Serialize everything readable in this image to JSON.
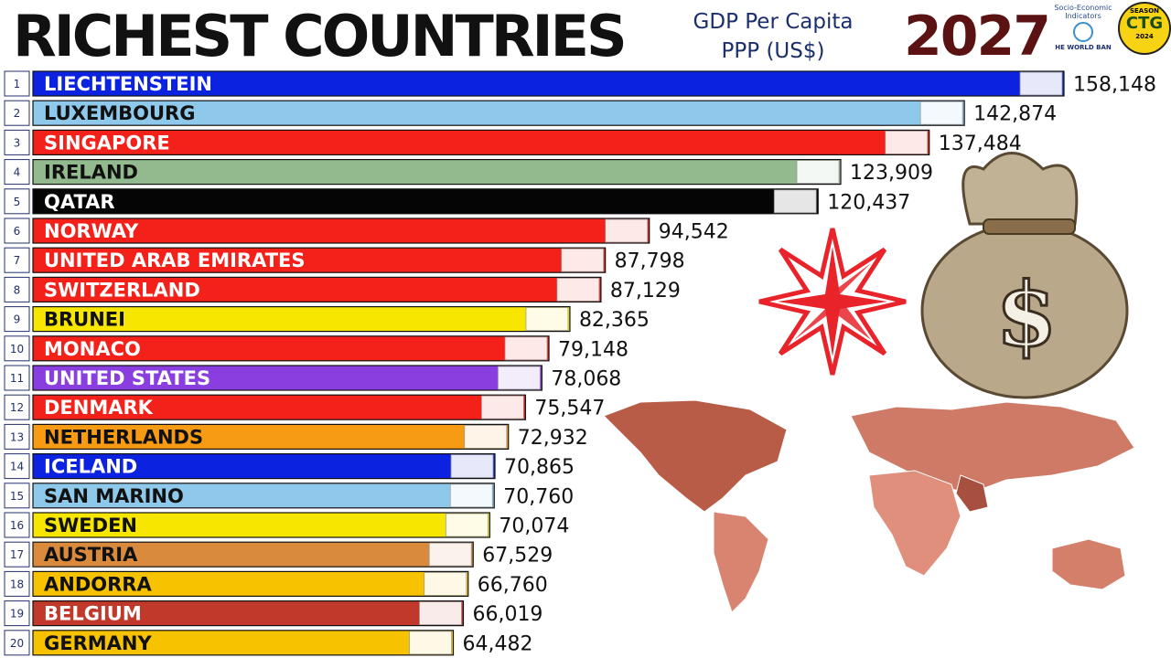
{
  "header": {
    "title": "RICHEST COUNTRIES",
    "subtitle_line1": "GDP Per Capita",
    "subtitle_line2": "PPP (US$)",
    "year": "2027",
    "logo_line1": "Socio-Economic",
    "logo_line2": "Indicators",
    "logo_line3": "HE WORLD BAN",
    "badge_top": "SEASON",
    "badge_mid": "CTG",
    "badge_bottom": "2024"
  },
  "chart_data": {
    "type": "bar",
    "orientation": "horizontal",
    "title": "RICHEST COUNTRIES",
    "subtitle": "GDP Per Capita PPP (US$)",
    "year": "2027",
    "xlim": [
      0,
      158148
    ],
    "grid": false,
    "legend": "none",
    "ranks": [
      "1",
      "2",
      "3",
      "4",
      "5",
      "6",
      "7",
      "8",
      "9",
      "10",
      "11",
      "12",
      "13",
      "14",
      "15",
      "16",
      "17",
      "18",
      "19",
      "20"
    ],
    "categories": [
      "LIECHTENSTEIN",
      "LUXEMBOURG",
      "SINGAPORE",
      "IRELAND",
      "QATAR",
      "NORWAY",
      "UNITED ARAB EMIRATES",
      "SWITZERLAND",
      "BRUNEI",
      "MONACO",
      "UNITED STATES",
      "DENMARK",
      "NETHERLANDS",
      "ICELAND",
      "SAN MARINO",
      "SWEDEN",
      "AUSTRIA",
      "ANDORRA",
      "BELGIUM",
      "GERMANY"
    ],
    "values": [
      158148,
      142874,
      137484,
      123909,
      120437,
      94542,
      87798,
      87129,
      82365,
      79148,
      78068,
      75547,
      72932,
      70865,
      70760,
      70074,
      67529,
      66760,
      66019,
      64482
    ],
    "value_labels": [
      "158,148",
      "142,874",
      "137,484",
      "123,909",
      "120,437",
      "94,542",
      "87,798",
      "87,129",
      "82,365",
      "79,148",
      "78,068",
      "75,547",
      "72,932",
      "70,865",
      "70,760",
      "70,074",
      "67,529",
      "66,760",
      "66,019",
      "64,482"
    ],
    "bar_colors": [
      "#0b22e0",
      "#8ec8ea",
      "#f4201a",
      "#93b98f",
      "#050505",
      "#f4201a",
      "#f4201a",
      "#f4201a",
      "#f7e600",
      "#f4201a",
      "#8a3ee0",
      "#f4201a",
      "#f79a14",
      "#0b22e0",
      "#8ec8ea",
      "#f7e600",
      "#d98a3c",
      "#f7c300",
      "#c0392b",
      "#f7c300"
    ],
    "label_colors": [
      "#ffffff",
      "#111111",
      "#ffffff",
      "#111111",
      "#ffffff",
      "#ffffff",
      "#ffffff",
      "#ffffff",
      "#111111",
      "#ffffff",
      "#ffffff",
      "#ffffff",
      "#111111",
      "#ffffff",
      "#111111",
      "#111111",
      "#111111",
      "#111111",
      "#ffffff",
      "#111111"
    ]
  }
}
